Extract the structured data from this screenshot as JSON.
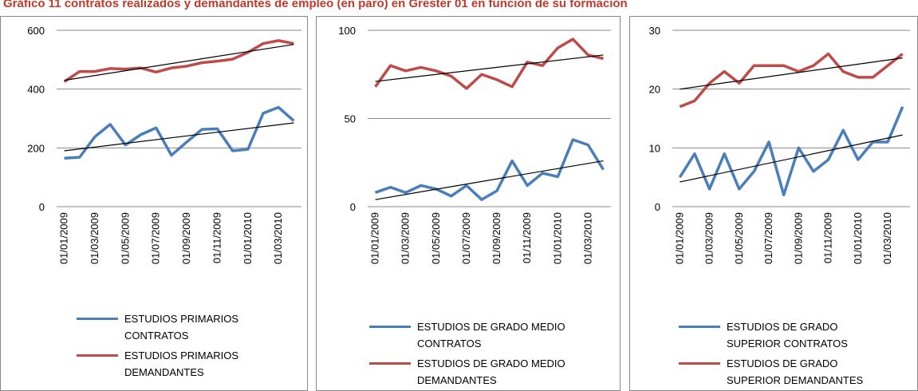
{
  "title": "Gráfico 11 contratos realizados y demandantes de empleo (en paro) en Grester 01 en función de su formación",
  "chart_data": [
    {
      "type": "line",
      "ylim": [
        0,
        600
      ],
      "yticks": [
        0,
        200,
        400,
        600
      ],
      "grid": true,
      "categories": [
        "01/01/2009",
        null,
        "01/03/2009",
        null,
        "01/05/2009",
        null,
        "01/07/2009",
        null,
        "01/09/2009",
        null,
        "01/11/2009",
        null,
        "01/01/2010",
        null,
        "01/03/2010",
        null
      ],
      "series": [
        {
          "name": "ESTUDIOS PRIMARIOS CONTRATOS",
          "color": "#4a7ebb",
          "values": [
            165,
            168,
            238,
            280,
            210,
            245,
            268,
            175,
            220,
            263,
            265,
            190,
            195,
            318,
            338,
            292
          ],
          "trend": [
            190,
            285
          ]
        },
        {
          "name": "ESTUDIOS PRIMARIOS DEMANDANTES",
          "color": "#be4b48",
          "values": [
            425,
            460,
            460,
            470,
            468,
            472,
            458,
            472,
            478,
            490,
            495,
            502,
            525,
            555,
            565,
            555
          ],
          "trend": [
            430,
            552
          ]
        }
      ]
    },
    {
      "type": "line",
      "ylim": [
        0,
        100
      ],
      "yticks": [
        0,
        50,
        100
      ],
      "grid": true,
      "categories": [
        "01/01/2009",
        null,
        "01/03/2009",
        null,
        "01/05/2009",
        null,
        "01/07/2009",
        null,
        "01/09/2009",
        null,
        "01/11/2009",
        null,
        "01/01/2010",
        null,
        "01/03/2010",
        null
      ],
      "series": [
        {
          "name": "ESTUDIOS DE GRADO MEDIO CONTRATOS",
          "color": "#4a7ebb",
          "values": [
            8,
            11,
            8,
            12,
            10,
            6,
            12,
            4,
            9,
            26,
            12,
            19,
            17,
            38,
            35,
            21
          ],
          "trend": [
            4,
            26
          ]
        },
        {
          "name": "ESTUDIOS DE GRADO MEDIO DEMANDANTES",
          "color": "#be4b48",
          "values": [
            68,
            80,
            77,
            79,
            77,
            74,
            67,
            75,
            72,
            68,
            82,
            80,
            90,
            95,
            86,
            84
          ],
          "trend": [
            71,
            86
          ]
        }
      ]
    },
    {
      "type": "line",
      "ylim": [
        0,
        30
      ],
      "yticks": [
        0,
        10,
        20,
        30
      ],
      "grid": true,
      "categories": [
        "01/01/2009",
        null,
        "01/03/2009",
        null,
        "01/05/2009",
        null,
        "01/07/2009",
        null,
        "01/09/2009",
        null,
        "01/11/2009",
        null,
        "01/01/2010",
        null,
        "01/03/2010",
        null
      ],
      "series": [
        {
          "name": "ESTUDIOS DE GRADO SUPERIOR CONTRATOS",
          "color": "#4a7ebb",
          "values": [
            5,
            9,
            3,
            9,
            3,
            6,
            11,
            2,
            10,
            6,
            8,
            13,
            8,
            11,
            11,
            17
          ],
          "trend": [
            4.2,
            12.2
          ]
        },
        {
          "name": "ESTUDIOS DE GRADO SUPERIOR DEMANDANTES",
          "color": "#be4b48",
          "values": [
            17,
            18,
            21,
            23,
            21,
            24,
            24,
            24,
            23,
            24,
            26,
            23,
            22,
            22,
            24,
            26
          ],
          "trend": [
            20,
            25.3
          ]
        }
      ]
    }
  ]
}
